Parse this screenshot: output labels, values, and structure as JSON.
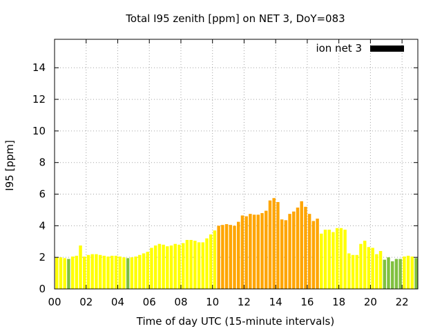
{
  "chart_data": {
    "type": "bar",
    "title": "Total I95 zenith [ppm] on NET 3, DoY=083",
    "xlabel": "Time of day UTC (15-minute intervals)",
    "ylabel": "I95 [ppm]",
    "xlim": [
      0,
      23
    ],
    "ylim": [
      0,
      15.8
    ],
    "xticks": [
      0,
      2,
      4,
      6,
      8,
      10,
      12,
      14,
      16,
      18,
      20,
      22
    ],
    "xtick_labels": [
      "00",
      "02",
      "04",
      "06",
      "08",
      "10",
      "12",
      "14",
      "16",
      "18",
      "20",
      "22"
    ],
    "yticks": [
      0,
      2,
      4,
      6,
      8,
      10,
      12,
      14
    ],
    "ytick_labels": [
      "0",
      "2",
      "4",
      "6",
      "8",
      "10",
      "12",
      "14"
    ],
    "grid": true,
    "legend": {
      "label": "ion net 3",
      "position": "top-right",
      "color": "#000000"
    },
    "interval_hours": 0.25,
    "colors": {
      "green": "#80c040",
      "yellow": "#ffff00",
      "orange": "#ffa500"
    },
    "series": [
      {
        "x": [
          0,
          0.25,
          0.5,
          0.75,
          1,
          1.25,
          1.5,
          1.75,
          2,
          2.25,
          2.5,
          2.75,
          3,
          3.25,
          3.5,
          3.75,
          4,
          4.25,
          4.5,
          4.75,
          5,
          5.25,
          5.5,
          5.75,
          6,
          6.25,
          6.5,
          6.75,
          7,
          7.25,
          7.5,
          7.75,
          8,
          8.25,
          8.5,
          8.75,
          9,
          9.25,
          9.5,
          9.75,
          10,
          10.25,
          10.5,
          10.75,
          11,
          11.25,
          11.5,
          11.75,
          12,
          12.25,
          12.5,
          12.75,
          13,
          13.25,
          13.5,
          13.75,
          14,
          14.25,
          14.5,
          14.75,
          15,
          15.25,
          15.5,
          15.75,
          16,
          16.25,
          16.5,
          16.75,
          17,
          17.25,
          17.5,
          17.75,
          18,
          18.25,
          18.5,
          18.75,
          19,
          19.25,
          19.5,
          19.75,
          20,
          20.25,
          20.5,
          20.75,
          21,
          21.25,
          21.5,
          21.75,
          22,
          22.25,
          22.5,
          22.75
        ],
        "values": [
          2.0,
          2.0,
          1.95,
          1.9,
          2.05,
          2.1,
          2.75,
          2.05,
          2.15,
          2.2,
          2.2,
          2.15,
          2.1,
          2.05,
          2.1,
          2.1,
          2.05,
          2.0,
          1.95,
          2.0,
          2.05,
          2.15,
          2.25,
          2.35,
          2.6,
          2.75,
          2.85,
          2.8,
          2.7,
          2.75,
          2.85,
          2.8,
          2.9,
          3.1,
          3.1,
          3.05,
          2.95,
          2.95,
          3.2,
          3.45,
          3.7,
          4.0,
          4.05,
          4.1,
          4.05,
          4.0,
          4.25,
          4.65,
          4.6,
          4.75,
          4.7,
          4.7,
          4.8,
          4.95,
          5.6,
          5.75,
          5.5,
          4.4,
          4.35,
          4.75,
          4.9,
          5.15,
          5.55,
          5.2,
          4.75,
          4.3,
          4.45,
          3.5,
          3.75,
          3.75,
          3.6,
          3.85,
          3.85,
          3.75,
          2.25,
          2.15,
          2.15,
          2.85,
          3.05,
          2.65,
          2.6,
          2.2,
          2.4,
          1.85,
          2.0,
          1.75,
          1.9,
          1.9,
          2.05,
          2.1,
          2.05,
          1.95
        ],
        "colors": [
          "yellow",
          "yellow",
          "yellow",
          "green",
          "yellow",
          "yellow",
          "yellow",
          "yellow",
          "yellow",
          "yellow",
          "yellow",
          "yellow",
          "yellow",
          "yellow",
          "yellow",
          "yellow",
          "yellow",
          "yellow",
          "green",
          "yellow",
          "yellow",
          "yellow",
          "yellow",
          "yellow",
          "yellow",
          "yellow",
          "yellow",
          "yellow",
          "yellow",
          "yellow",
          "yellow",
          "yellow",
          "yellow",
          "yellow",
          "yellow",
          "yellow",
          "yellow",
          "yellow",
          "yellow",
          "yellow",
          "yellow",
          "orange",
          "orange",
          "orange",
          "orange",
          "orange",
          "orange",
          "orange",
          "orange",
          "orange",
          "orange",
          "orange",
          "orange",
          "orange",
          "orange",
          "orange",
          "orange",
          "orange",
          "orange",
          "orange",
          "orange",
          "orange",
          "orange",
          "orange",
          "orange",
          "orange",
          "orange",
          "yellow",
          "yellow",
          "yellow",
          "yellow",
          "yellow",
          "yellow",
          "yellow",
          "yellow",
          "yellow",
          "yellow",
          "yellow",
          "yellow",
          "yellow",
          "yellow",
          "yellow",
          "yellow",
          "green",
          "green",
          "green",
          "green",
          "green",
          "yellow",
          "yellow",
          "yellow",
          "green"
        ]
      }
    ]
  }
}
